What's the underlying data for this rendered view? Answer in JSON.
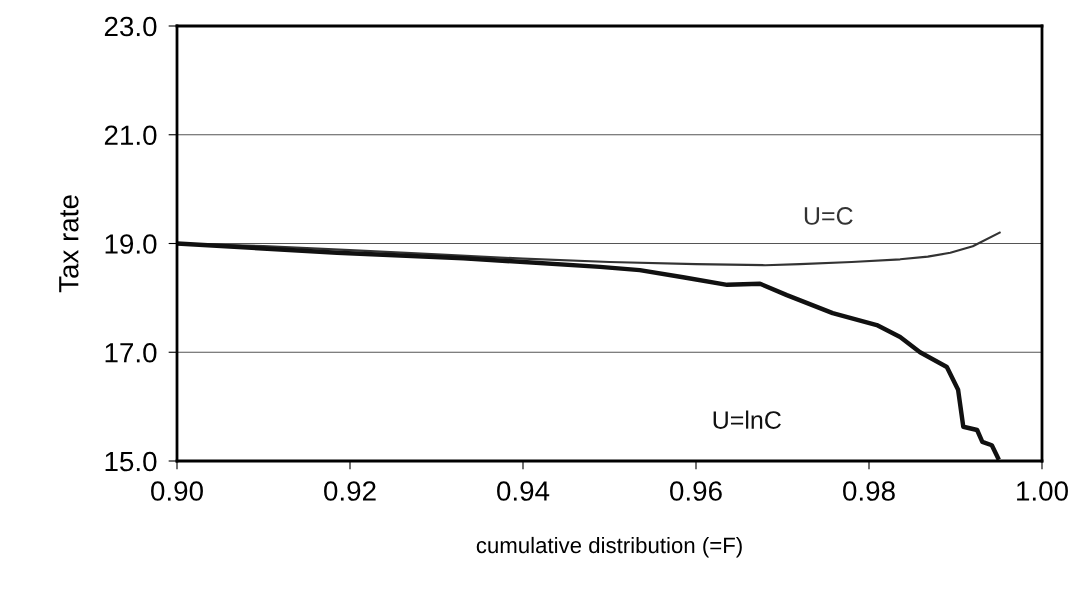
{
  "chart_data": {
    "type": "line",
    "xlabel": "cumulative distribution (=F)",
    "ylabel": "Tax rate",
    "xlim": [
      0.9,
      1.0
    ],
    "ylim": [
      15.0,
      23.0
    ],
    "xticks": [
      {
        "value": 0.9,
        "label": "0.90"
      },
      {
        "value": 0.92,
        "label": "0.92"
      },
      {
        "value": 0.94,
        "label": "0.94"
      },
      {
        "value": 0.96,
        "label": "0.96"
      },
      {
        "value": 0.98,
        "label": "0.98"
      },
      {
        "value": 1.0,
        "label": "1.00"
      }
    ],
    "yticks": [
      {
        "value": 15,
        "label": "15.0"
      },
      {
        "value": 17,
        "label": "17.0"
      },
      {
        "value": 19,
        "label": "19.0"
      },
      {
        "value": 21,
        "label": "21.0"
      },
      {
        "value": 23,
        "label": "23.0"
      }
    ],
    "grid": "y",
    "legend": false,
    "marker": "none",
    "line_style": "solid",
    "series": [
      {
        "name": "U=C",
        "color": "#333333",
        "x": [
          0.9,
          0.91,
          0.92,
          0.93,
          0.94,
          0.95,
          0.96,
          0.968,
          0.972,
          0.978,
          0.9836,
          0.9868,
          0.9894,
          0.992,
          0.9951
        ],
        "values": [
          19.0,
          18.95,
          18.88,
          18.8,
          18.72,
          18.66,
          18.62,
          18.6,
          18.62,
          18.66,
          18.71,
          18.76,
          18.83,
          18.95,
          19.2
        ]
      },
      {
        "name": "U=lnC",
        "color": "#111111",
        "x": [
          0.9,
          0.9185,
          0.9331,
          0.9489,
          0.9535,
          0.9585,
          0.9636,
          0.9674,
          0.9705,
          0.9758,
          0.9809,
          0.9836,
          0.9859,
          0.989,
          0.9903,
          0.9909,
          0.9925,
          0.9931,
          0.9942,
          0.9949
        ],
        "values": [
          19.0,
          18.83,
          18.73,
          18.57,
          18.51,
          18.38,
          18.24,
          18.26,
          18.05,
          17.72,
          17.5,
          17.28,
          17.0,
          16.73,
          16.31,
          15.63,
          15.57,
          15.35,
          15.29,
          15.06
        ]
      }
    ]
  }
}
